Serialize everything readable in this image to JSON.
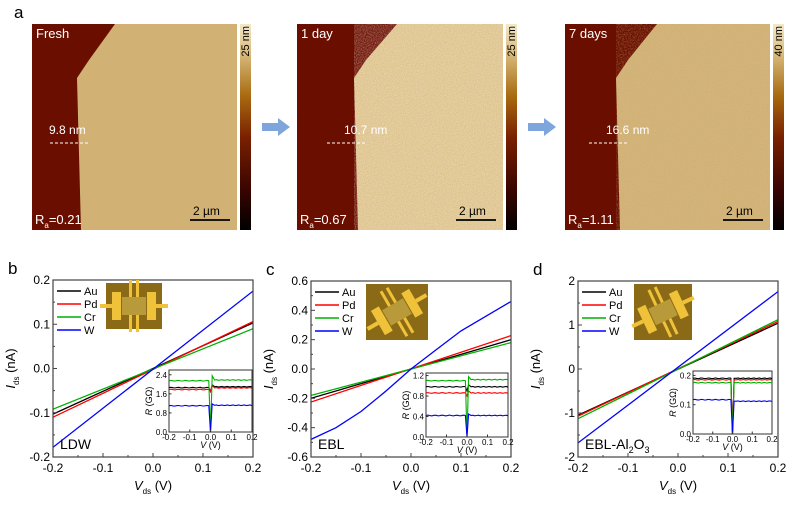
{
  "panel_a": {
    "label": "a",
    "images": [
      {
        "title": "Fresh",
        "thickness": "9.8 nm",
        "ra_prefix": "R",
        "ra_sub": "a",
        "ra_value": "=0.21",
        "scalebar": "2 µm",
        "colorbar_max": "25 nm",
        "roughness": "low"
      },
      {
        "title": "1 day",
        "thickness": "10.7 nm",
        "ra_prefix": "R",
        "ra_sub": "a",
        "ra_value": "=0.67",
        "scalebar": "2 µm",
        "colorbar_max": "25 nm",
        "roughness": "medium"
      },
      {
        "title": "7 days",
        "thickness": "16.6 nm",
        "ra_prefix": "R",
        "ra_sub": "a",
        "ra_value": "=1.11",
        "scalebar": "2 µm",
        "colorbar_max": "40 nm",
        "roughness": "high"
      }
    ],
    "arrow_color": "#7ea6dc",
    "colormap": [
      "#000000",
      "#5a0a00",
      "#8a3a00",
      "#b07a10",
      "#d4b070",
      "#f2e4c0"
    ]
  },
  "chart_data": [
    {
      "id": "b",
      "panel_label": "b",
      "type": "line",
      "annotation": "LDW",
      "xlabel": "V",
      "xlabel_sub": "ds",
      "xlabel_unit": " (V)",
      "ylabel": "I",
      "ylabel_sub": "ds",
      "ylabel_unit": " (nA)",
      "xlim": [
        -0.2,
        0.2
      ],
      "ylim": [
        -0.2,
        0.2
      ],
      "xticks": [
        -0.2,
        -0.1,
        0.0,
        0.1,
        0.2
      ],
      "xtick_labels": [
        "-0.2",
        "-0.1",
        "0.0",
        "0.1",
        "0.2"
      ],
      "yticks": [
        -0.2,
        -0.1,
        0.0,
        0.1,
        0.2
      ],
      "ytick_labels": [
        "-0.2",
        "-0.1",
        "0.0",
        "0.1",
        "0.2"
      ],
      "legend": "top-left",
      "series": [
        {
          "name": "Au",
          "color": "#000000",
          "x": [
            -0.2,
            0.2
          ],
          "y": [
            -0.103,
            0.103
          ]
        },
        {
          "name": "Pd",
          "color": "#ff0000",
          "x": [
            -0.2,
            0.2
          ],
          "y": [
            -0.11,
            0.106
          ]
        },
        {
          "name": "Cr",
          "color": "#00b000",
          "x": [
            -0.2,
            0.2
          ],
          "y": [
            -0.092,
            0.09
          ]
        },
        {
          "name": "W",
          "color": "#0000ff",
          "x": [
            -0.2,
            0.2
          ],
          "y": [
            -0.178,
            0.175
          ]
        }
      ],
      "inset": {
        "xlabel": "V (V)",
        "ylabel": "R (GΩ)",
        "xlim": [
          -0.2,
          0.2
        ],
        "ylim": [
          0,
          2.6
        ],
        "xtick_labels": [
          "-0.2",
          "-0.1",
          "0.0",
          "0.1",
          "0.2"
        ],
        "xticks": [
          -0.2,
          -0.1,
          0.0,
          0.1,
          0.2
        ],
        "ytick_labels": [
          "0.0",
          "0.8",
          "1.6",
          "2.4"
        ],
        "yticks": [
          0.0,
          0.8,
          1.6,
          2.4
        ],
        "series": [
          {
            "name": "Au",
            "color": "#000000",
            "left": 1.86,
            "right": 1.9,
            "dip": 1.7,
            "spike": 1.98
          },
          {
            "name": "Pd",
            "color": "#ff0000",
            "left": 1.78,
            "right": 1.85,
            "dip": 1.7,
            "spike": 1.95
          },
          {
            "name": "Cr",
            "color": "#00b000",
            "left": 2.15,
            "right": 2.18,
            "dip": 0.0,
            "spike": 2.36
          },
          {
            "name": "W",
            "color": "#0000ff",
            "left": 1.1,
            "right": 1.12,
            "dip": 0.0,
            "spike": 1.18
          }
        ]
      }
    },
    {
      "id": "c",
      "panel_label": "c",
      "type": "line",
      "annotation": "EBL",
      "xlabel": "V",
      "xlabel_sub": "ds",
      "xlabel_unit": " (V)",
      "ylabel": "I",
      "ylabel_sub": "ds",
      "ylabel_unit": " (nA)",
      "xlim": [
        -0.2,
        0.2
      ],
      "ylim": [
        -0.6,
        0.6
      ],
      "xticks": [
        -0.2,
        -0.1,
        0.0,
        0.1,
        0.2
      ],
      "xtick_labels": [
        "-0.2",
        "-0.1",
        "0.0",
        "0.1",
        "0.2"
      ],
      "yticks": [
        -0.6,
        -0.4,
        -0.2,
        0.0,
        0.2,
        0.4,
        0.6
      ],
      "ytick_labels": [
        "-0.6",
        "-0.4",
        "-0.2",
        "0.0",
        "0.2",
        "0.4",
        "0.6"
      ],
      "legend": "top-left",
      "series": [
        {
          "name": "Au",
          "color": "#000000",
          "x": [
            -0.2,
            0.2
          ],
          "y": [
            -0.2,
            0.2
          ]
        },
        {
          "name": "Pd",
          "color": "#ff0000",
          "x": [
            -0.2,
            0.2
          ],
          "y": [
            -0.225,
            0.228
          ]
        },
        {
          "name": "Cr",
          "color": "#00b000",
          "x": [
            -0.2,
            0.2
          ],
          "y": [
            -0.18,
            0.18
          ]
        },
        {
          "name": "W",
          "color": "#0000ff",
          "x": [
            -0.2,
            -0.15,
            -0.1,
            -0.05,
            0.0,
            0.05,
            0.1,
            0.15,
            0.2
          ],
          "y": [
            -0.48,
            -0.4,
            -0.29,
            -0.15,
            0.0,
            0.13,
            0.26,
            0.36,
            0.46
          ]
        }
      ],
      "inset": {
        "xlabel": "V (V)",
        "ylabel": "R (GΩ)",
        "xlim": [
          -0.2,
          0.2
        ],
        "ylim": [
          0,
          1.25
        ],
        "xtick_labels": [
          "-0.2",
          "-0.1",
          "0.0",
          "0.1",
          "0.2"
        ],
        "xticks": [
          -0.2,
          -0.1,
          0.0,
          0.1,
          0.2
        ],
        "ytick_labels": [
          "0.0",
          "0.4",
          "0.8",
          "1.2"
        ],
        "yticks": [
          0.0,
          0.4,
          0.8,
          1.2
        ],
        "series": [
          {
            "name": "Au",
            "color": "#000000",
            "left": 0.98,
            "right": 0.98,
            "dip": 0.9,
            "spike": 1.02
          },
          {
            "name": "Pd",
            "color": "#ff0000",
            "left": 0.86,
            "right": 0.86,
            "dip": 0.8,
            "spike": 0.9
          },
          {
            "name": "Cr",
            "color": "#00b000",
            "left": 1.1,
            "right": 1.12,
            "dip": 0.0,
            "spike": 1.18
          },
          {
            "name": "W",
            "color": "#0000ff",
            "left": 0.42,
            "right": 0.42,
            "dip": 0.0,
            "spike": 0.45
          }
        ]
      }
    },
    {
      "id": "d",
      "panel_label": "d",
      "type": "line",
      "annotation": "EBL-Al",
      "annotation_sub1": "2",
      "annotation_mid": "O",
      "annotation_sub2": "3",
      "xlabel": "V",
      "xlabel_sub": "ds",
      "xlabel_unit": " (V)",
      "ylabel": "I",
      "ylabel_sub": "ds",
      "ylabel_unit": " (nA)",
      "xlim": [
        -0.2,
        0.2
      ],
      "ylim": [
        -2,
        2
      ],
      "xticks": [
        -0.2,
        -0.1,
        0.0,
        0.1,
        0.2
      ],
      "xtick_labels": [
        "-0.2",
        "-0.1",
        "0.0",
        "0.1",
        "0.2"
      ],
      "yticks": [
        -2,
        -1,
        0,
        1,
        2
      ],
      "ytick_labels": [
        "-2",
        "-1",
        "0",
        "1",
        "2"
      ],
      "legend": "top-left",
      "series": [
        {
          "name": "Au",
          "color": "#000000",
          "x": [
            -0.2,
            0.2
          ],
          "y": [
            -1.05,
            1.04
          ]
        },
        {
          "name": "Pd",
          "color": "#ff0000",
          "x": [
            -0.2,
            0.2
          ],
          "y": [
            -1.07,
            1.08
          ]
        },
        {
          "name": "Cr",
          "color": "#00b000",
          "x": [
            -0.2,
            0.2
          ],
          "y": [
            -1.13,
            1.12
          ]
        },
        {
          "name": "W",
          "color": "#0000ff",
          "x": [
            -0.2,
            0.2
          ],
          "y": [
            -1.68,
            1.76
          ]
        }
      ],
      "inset": {
        "xlabel": "V (V)",
        "ylabel": "R (GΩ)",
        "xlim": [
          -0.2,
          0.2
        ],
        "ylim": [
          0,
          0.215
        ],
        "xtick_labels": [
          "-0.2",
          "-0.1",
          "0.0",
          "0.1",
          "0.2"
        ],
        "xticks": [
          -0.2,
          -0.1,
          0.0,
          0.1,
          0.2
        ],
        "ytick_labels": [
          "0.0",
          "0.1",
          "0.2"
        ],
        "yticks": [
          0.0,
          0.1,
          0.2
        ],
        "series": [
          {
            "name": "Au",
            "color": "#000000",
            "left": 0.19,
            "right": 0.19,
            "dip": 0.0,
            "spike": 0.19
          },
          {
            "name": "Pd",
            "color": "#ff0000",
            "left": 0.185,
            "right": 0.185,
            "dip": 0.0,
            "spike": 0.185
          },
          {
            "name": "Cr",
            "color": "#00b000",
            "left": 0.175,
            "right": 0.175,
            "dip": 0.0,
            "spike": 0.175
          },
          {
            "name": "W",
            "color": "#0000ff",
            "left": 0.117,
            "right": 0.112,
            "dip": 0.0,
            "spike": 0.112
          }
        ]
      }
    }
  ]
}
